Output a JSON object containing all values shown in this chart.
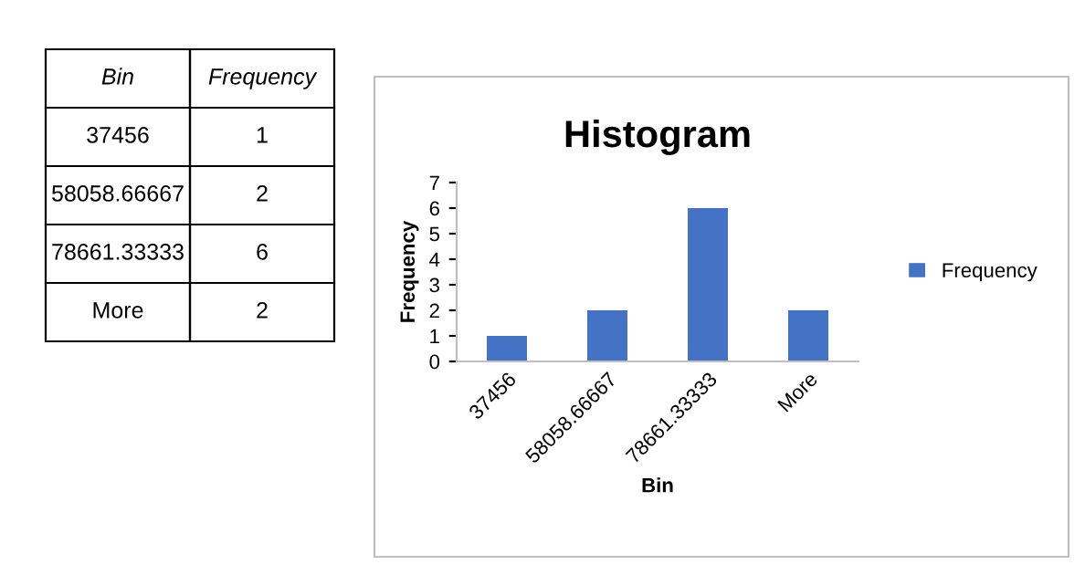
{
  "chart_data": {
    "type": "bar",
    "title": "Histogram",
    "xlabel": "Bin",
    "ylabel": "Frequency",
    "categories": [
      "37456",
      "58058.66667",
      "78661.33333",
      "More"
    ],
    "series": [
      {
        "name": "Frequency",
        "color": "#4472c4",
        "values": [
          1,
          2,
          6,
          2
        ]
      }
    ],
    "value_labels": [
      "1",
      "2",
      "6",
      "2"
    ],
    "ylim": [
      0,
      7
    ],
    "yticks": [
      0,
      1,
      2,
      3,
      4,
      5,
      6,
      7
    ],
    "grid": false,
    "legend": "right"
  }
}
